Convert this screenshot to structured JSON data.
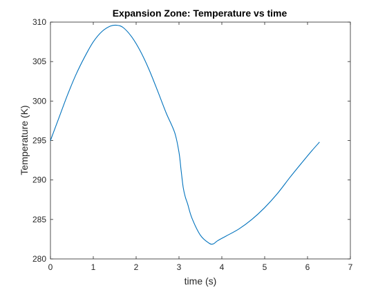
{
  "chart_data": {
    "type": "line",
    "title": "Expansion Zone: Temperature vs time",
    "xlabel": "time (s)",
    "ylabel": "Temperature (K)",
    "xlim": [
      0,
      7
    ],
    "ylim": [
      280,
      310
    ],
    "xticks": [
      0,
      1,
      2,
      3,
      4,
      5,
      6,
      7
    ],
    "yticks": [
      280,
      285,
      290,
      295,
      300,
      305,
      310
    ],
    "grid": false,
    "box": true,
    "series": [
      {
        "color": "#0072BD",
        "x": [
          0,
          0.2,
          0.4,
          0.6,
          0.8,
          1.0,
          1.2,
          1.4,
          1.55,
          1.7,
          1.9,
          2.1,
          2.3,
          2.5,
          2.7,
          2.9,
          3.0,
          3.05,
          3.1,
          3.15,
          3.2,
          3.3,
          3.5,
          3.7,
          3.8,
          3.9,
          4.1,
          4.4,
          4.7,
          5.0,
          5.3,
          5.6,
          5.9,
          6.1,
          6.28
        ],
        "y": [
          295.0,
          297.9,
          300.8,
          303.4,
          305.6,
          307.5,
          308.8,
          309.5,
          309.6,
          309.3,
          308.1,
          306.3,
          304.0,
          301.3,
          298.5,
          296.0,
          293.5,
          291.2,
          289.0,
          287.8,
          287.0,
          285.2,
          283.0,
          282.0,
          281.9,
          282.3,
          282.9,
          283.8,
          285.0,
          286.5,
          288.3,
          290.4,
          292.4,
          293.7,
          294.8
        ]
      }
    ]
  }
}
